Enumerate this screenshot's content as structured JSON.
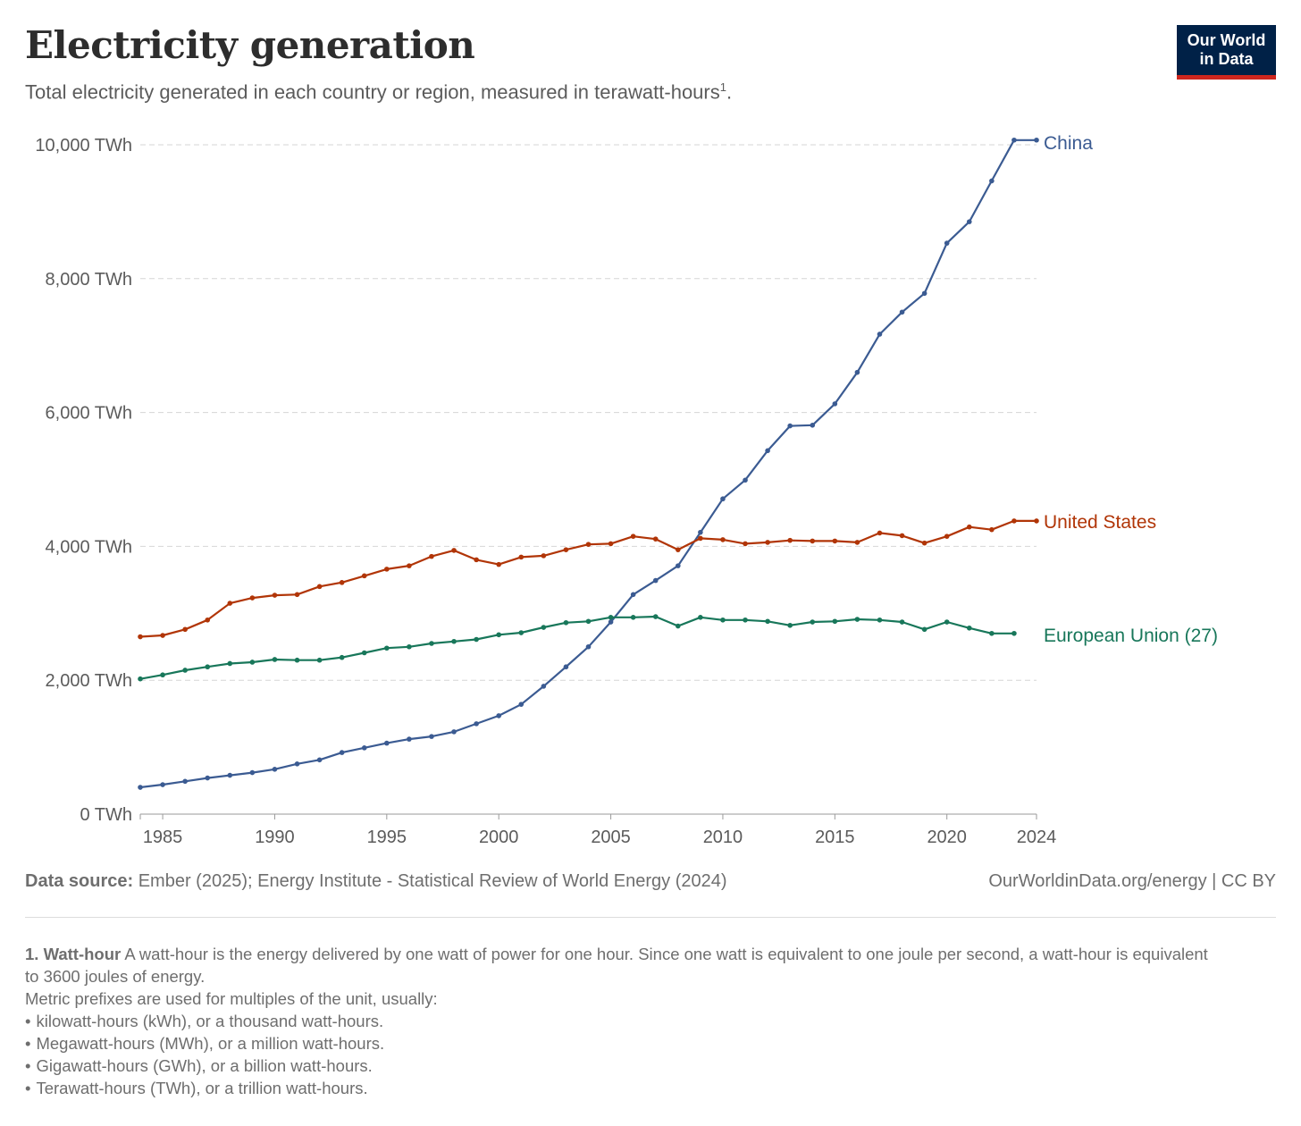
{
  "header": {
    "title": "Electricity generation",
    "subtitle": "Total electricity generated in each country or region, measured in terawatt-hours",
    "subtitle_footnote_marker": "1",
    "subtitle_end": "."
  },
  "logo": {
    "line1": "Our World",
    "line2": "in Data"
  },
  "colors": {
    "China": "#3b5b92",
    "United States": "#b13507",
    "European Union (27)": "#18775a"
  },
  "chart_data": {
    "type": "line",
    "title": "Electricity generation",
    "ylabel_unit": "TWh",
    "ylim": [
      0,
      10000
    ],
    "xlim": [
      1984,
      2024
    ],
    "y_ticks": [
      0,
      2000,
      4000,
      6000,
      8000,
      10000
    ],
    "y_tick_labels": [
      "0 TWh",
      "2,000 TWh",
      "4,000 TWh",
      "6,000 TWh",
      "8,000 TWh",
      "10,000 TWh"
    ],
    "x_ticks": [
      1985,
      1990,
      1995,
      2000,
      2005,
      2010,
      2015,
      2020,
      2024
    ],
    "x_tick_labels": [
      "1985",
      "1990",
      "1995",
      "2000",
      "2005",
      "2010",
      "2015",
      "2020",
      "2024"
    ],
    "grid": true,
    "legend": "line-end labels",
    "series": [
      {
        "name": "China",
        "color": "#3b5b92",
        "x": [
          1984,
          1985,
          1986,
          1987,
          1988,
          1989,
          1990,
          1991,
          1992,
          1993,
          1994,
          1995,
          1996,
          1997,
          1998,
          1999,
          2000,
          2001,
          2002,
          2003,
          2004,
          2005,
          2006,
          2007,
          2008,
          2009,
          2010,
          2011,
          2012,
          2013,
          2014,
          2015,
          2016,
          2017,
          2018,
          2019,
          2020,
          2021,
          2022,
          2023,
          2024
        ],
        "values": [
          400,
          440,
          490,
          540,
          580,
          620,
          670,
          750,
          810,
          920,
          990,
          1060,
          1120,
          1160,
          1230,
          1350,
          1470,
          1640,
          1910,
          2200,
          2500,
          2870,
          3280,
          3490,
          3710,
          4210,
          4710,
          4990,
          5430,
          5800,
          5810,
          6130,
          6600,
          7170,
          7500,
          7780,
          8530,
          8850,
          9460,
          10070,
          10070
        ]
      },
      {
        "name": "United States",
        "color": "#b13507",
        "x": [
          1984,
          1985,
          1986,
          1987,
          1988,
          1989,
          1990,
          1991,
          1992,
          1993,
          1994,
          1995,
          1996,
          1997,
          1998,
          1999,
          2000,
          2001,
          2002,
          2003,
          2004,
          2005,
          2006,
          2007,
          2008,
          2009,
          2010,
          2011,
          2012,
          2013,
          2014,
          2015,
          2016,
          2017,
          2018,
          2019,
          2020,
          2021,
          2022,
          2023,
          2024
        ],
        "values": [
          2650,
          2670,
          2760,
          2900,
          3150,
          3230,
          3270,
          3280,
          3400,
          3460,
          3560,
          3660,
          3710,
          3850,
          3940,
          3800,
          3730,
          3840,
          3860,
          3950,
          4030,
          4040,
          4150,
          4110,
          3950,
          4120,
          4100,
          4040,
          4060,
          4090,
          4080,
          4080,
          4060,
          4200,
          4160,
          4050,
          4150,
          4290,
          4250,
          4380,
          4380
        ]
      },
      {
        "name": "European Union (27)",
        "color": "#18775a",
        "x": [
          1984,
          1985,
          1986,
          1987,
          1988,
          1989,
          1990,
          1991,
          1992,
          1993,
          1994,
          1995,
          1996,
          1997,
          1998,
          1999,
          2000,
          2001,
          2002,
          2003,
          2004,
          2005,
          2006,
          2007,
          2008,
          2009,
          2010,
          2011,
          2012,
          2013,
          2014,
          2015,
          2016,
          2017,
          2018,
          2019,
          2020,
          2021,
          2022,
          2023
        ],
        "values": [
          2020,
          2080,
          2150,
          2200,
          2250,
          2270,
          2310,
          2300,
          2300,
          2340,
          2410,
          2480,
          2500,
          2550,
          2580,
          2610,
          2680,
          2710,
          2790,
          2860,
          2880,
          2940,
          2940,
          2950,
          2810,
          2940,
          2900,
          2900,
          2880,
          2820,
          2870,
          2880,
          2910,
          2900,
          2870,
          2760,
          2870,
          2780,
          2700,
          2700
        ]
      }
    ]
  },
  "footer": {
    "source_label": "Data source:",
    "source_text": "Ember (2025); Energy Institute - Statistical Review of World Energy (2024)",
    "right_text": "OurWorldinData.org/energy | CC BY"
  },
  "notes": {
    "heading": "1. Watt-hour",
    "para": "A watt-hour is the energy delivered by one watt of power for one hour. Since one watt is equivalent to one joule per second, a watt-hour is equivalent to 3600 joules of energy.",
    "intro": "Metric prefixes are used for multiples of the unit, usually:",
    "items": [
      "kilowatt-hours (kWh), or a thousand watt-hours.",
      "Megawatt-hours (MWh), or a million watt-hours.",
      "Gigawatt-hours (GWh), or a billion watt-hours.",
      "Terawatt-hours (TWh), or a trillion watt-hours."
    ]
  }
}
